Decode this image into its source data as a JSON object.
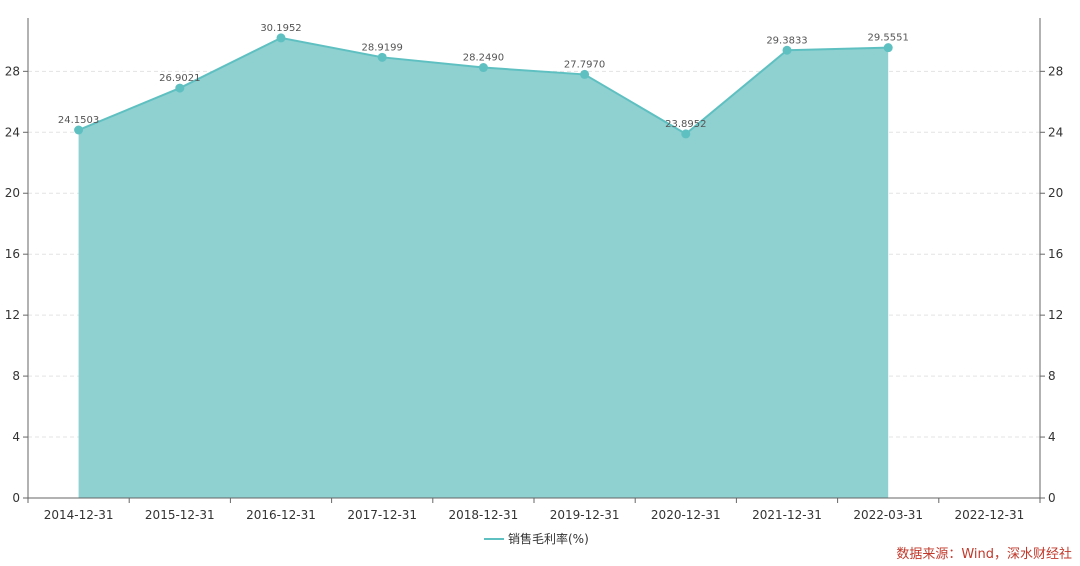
{
  "chart_data": {
    "type": "area",
    "categories": [
      "2014-12-31",
      "2015-12-31",
      "2016-12-31",
      "2017-12-31",
      "2018-12-31",
      "2019-12-31",
      "2020-12-31",
      "2021-12-31",
      "2022-03-31",
      "2022-12-31"
    ],
    "series": [
      {
        "name": "销售毛利率(%)",
        "values": [
          24.1503,
          26.9021,
          30.1952,
          28.9199,
          28.249,
          27.797,
          23.8952,
          29.3833,
          29.5551,
          null
        ],
        "labels": [
          "24.1503",
          "26.9021",
          "30.1952",
          "28.9199",
          "28.2490",
          "27.7970",
          "23.8952",
          "29.3833",
          "29.5551",
          ""
        ],
        "color": "#5fc0c1",
        "fill": "#8fd0d1"
      }
    ],
    "ylim": [
      0,
      31.5
    ],
    "y_ticks": [
      0,
      4,
      8,
      12,
      16,
      20,
      24,
      28
    ],
    "y_axes": [
      "left",
      "right"
    ],
    "grid": true,
    "legend_position": "bottom-center"
  },
  "source_text": "数据来源：Wind，深水财经社"
}
